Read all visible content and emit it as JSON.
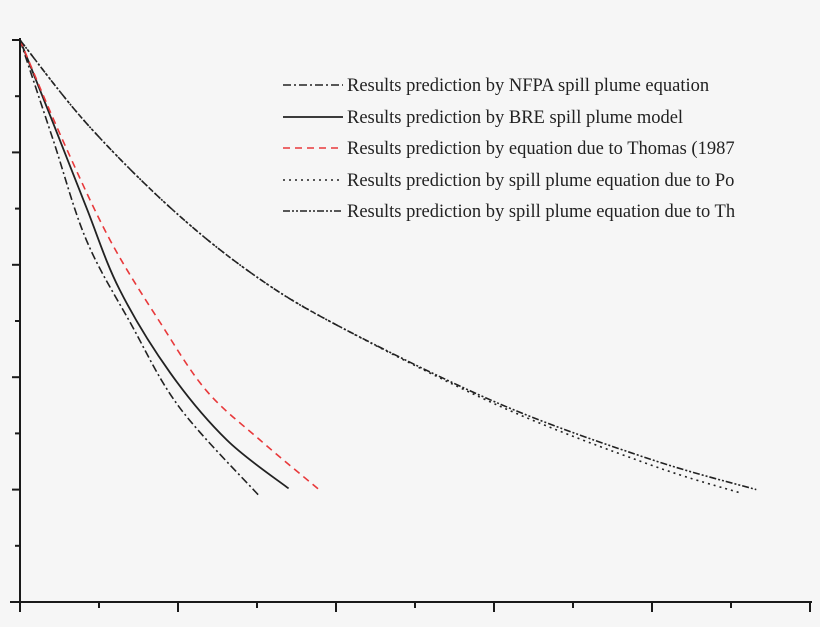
{
  "chart_data": {
    "type": "line",
    "title": "",
    "xlabel": "",
    "ylabel": "",
    "xlim": [
      0,
      5
    ],
    "ylim": [
      0,
      5
    ],
    "x_major_ticks": [
      0,
      1,
      2,
      3,
      4,
      5
    ],
    "y_major_ticks": [
      0,
      1,
      2,
      3,
      4,
      5
    ],
    "tick_labels_visible": false,
    "grid": false,
    "legend_position": "top-right",
    "series": [
      {
        "name": "Results prediction by NFPA spill plume equation",
        "style": "dash-dot",
        "color": "#222222",
        "x": [
          0,
          0.21,
          0.42,
          0.7,
          1.01,
          1.51
        ],
        "y": [
          5,
          4.11,
          3.22,
          2.48,
          1.73,
          0.95
        ]
      },
      {
        "name": "Results prediction by BRE spill plume model",
        "style": "solid",
        "color": "#222222",
        "x": [
          0,
          0.21,
          0.42,
          0.63,
          0.95,
          1.31,
          1.7
        ],
        "y": [
          5,
          4.26,
          3.51,
          2.78,
          2.04,
          1.44,
          1.01
        ]
      },
      {
        "name": "Results prediction by equation due to Thomas (1987",
        "style": "dashed",
        "color": "#e8393b",
        "x": [
          0,
          0.27,
          0.57,
          0.89,
          1.18,
          1.52,
          1.91
        ],
        "y": [
          5,
          4.11,
          3.22,
          2.48,
          1.88,
          1.44,
          0.98
        ]
      },
      {
        "name": "Results prediction by spill plume equation due to Po",
        "style": "dotted",
        "color": "#222222",
        "x": [
          0,
          0.42,
          0.95,
          1.47,
          2.01,
          3.04,
          3.99,
          4.56
        ],
        "y": [
          5,
          4.26,
          3.51,
          2.92,
          2.46,
          1.74,
          1.22,
          0.97
        ]
      },
      {
        "name": "Results prediction by spill plume equation due to Th",
        "style": "dash-dot-dot",
        "color": "#222222",
        "x": [
          0,
          0.42,
          0.95,
          1.47,
          2.01,
          3.04,
          3.99,
          4.66
        ],
        "y": [
          5,
          4.26,
          3.51,
          2.92,
          2.46,
          1.76,
          1.27,
          1.0
        ]
      }
    ]
  }
}
